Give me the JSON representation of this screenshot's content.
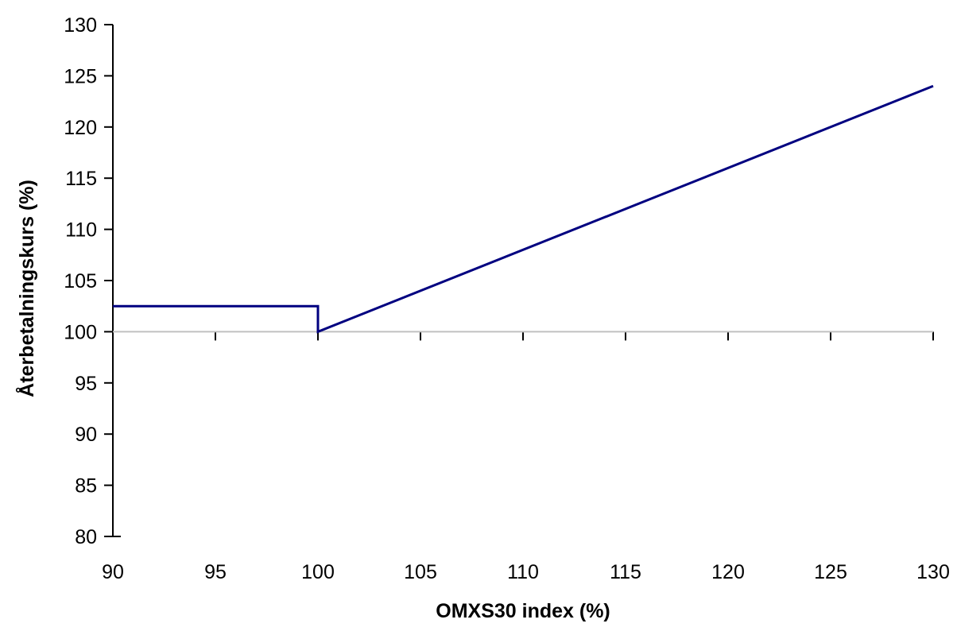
{
  "chart_data": {
    "type": "line",
    "title": "",
    "xlabel": "OMXS30 index (%)",
    "ylabel": "Återbetalningskurs (%)",
    "xlim": [
      90,
      130
    ],
    "ylim": [
      80,
      130
    ],
    "x_ticks": [
      90,
      95,
      100,
      105,
      110,
      115,
      120,
      125,
      130
    ],
    "y_ticks": [
      80,
      85,
      90,
      95,
      100,
      105,
      110,
      115,
      120,
      125,
      130
    ],
    "x_axis_crosses_at_y": 100,
    "grid": false,
    "legend": "none",
    "series": [
      {
        "color": "#000080",
        "points": [
          [
            90,
            102.5
          ],
          [
            100,
            102.5
          ],
          [
            100,
            100
          ],
          [
            130,
            124
          ]
        ]
      }
    ]
  },
  "colors": {
    "series_line": "#000080",
    "axis_line": "#000000",
    "crossing_axis_line": "#c0c0c0"
  }
}
